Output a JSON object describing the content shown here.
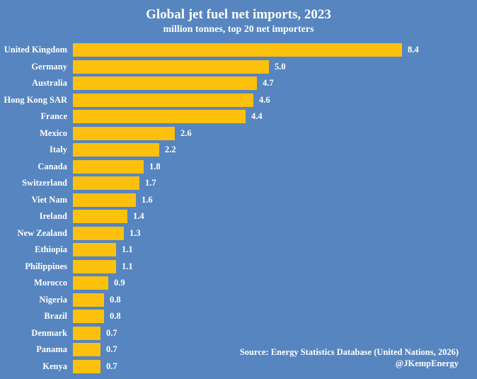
{
  "header": {
    "title": "Global jet fuel net imports, 2023",
    "subtitle": "million tonnes, top 20 net importers"
  },
  "source": {
    "line1": "Source: Energy Statistics Database (United Nations, 2026)",
    "line2": "@JKempEnergy"
  },
  "colors": {
    "background": "#5685C0",
    "bar": "#FDC00D",
    "text": "#FFFFFF"
  },
  "chart_data": {
    "type": "bar",
    "orientation": "horizontal",
    "title": "Global jet fuel net imports, 2023",
    "subtitle": "million tonnes, top 20 net importers",
    "xlabel": "",
    "ylabel": "",
    "xlim": [
      0,
      8.4
    ],
    "grid": false,
    "legend": false,
    "categories": [
      "United Kingdom",
      "Germany",
      "Australia",
      "Hong Kong SAR",
      "France",
      "Mexico",
      "Italy",
      "Canada",
      "Switzerland",
      "Viet Nam",
      "Ireland",
      "New Zealand",
      "Ethiopia",
      "Philippines",
      "Morocco",
      "Nigeria",
      "Brazil",
      "Denmark",
      "Panama",
      "Kenya"
    ],
    "values": [
      8.4,
      5.0,
      4.7,
      4.6,
      4.4,
      2.6,
      2.2,
      1.8,
      1.7,
      1.6,
      1.4,
      1.3,
      1.1,
      1.1,
      0.9,
      0.8,
      0.8,
      0.7,
      0.7,
      0.7
    ],
    "value_labels": [
      "8.4",
      "5.0",
      "4.7",
      "4.6",
      "4.4",
      "2.6",
      "2.2",
      "1.8",
      "1.7",
      "1.6",
      "1.4",
      "1.3",
      "1.1",
      "1.1",
      "0.9",
      "0.8",
      "0.8",
      "0.7",
      "0.7",
      "0.7"
    ]
  }
}
